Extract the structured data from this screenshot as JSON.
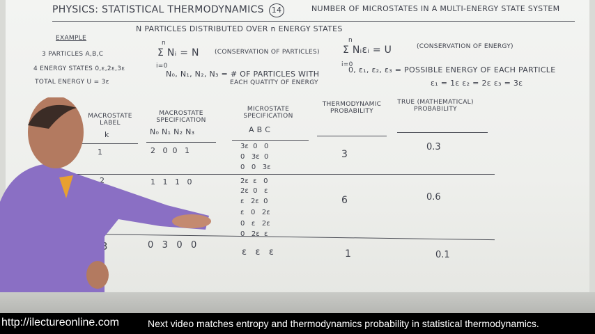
{
  "title": {
    "left": "PHYSICS: STATISTICAL THERMODYNAMICS",
    "number": "14",
    "right": "NUMBER OF MICROSTATES IN A MULTI-ENERGY STATE SYSTEM"
  },
  "intro": {
    "heading": "N PARTICLES DISTRIBUTED OVER n ENERGY STATES",
    "example_label": "EXAMPLE",
    "example": [
      "3 PARTICLES A,B,C",
      "4 ENERGY STATES 0,ε,2ε,3ε",
      "TOTAL ENERGY  U = 3ε"
    ],
    "sum1": "Σ Nᵢ = N",
    "sum1_limits": {
      "top": "n",
      "bottom": "i=0"
    },
    "sum1_note": "(CONSERVATION OF PARTICLES)",
    "ndef": "N₀, N₁, N₂, N₃ = # OF PARTICLES WITH",
    "ndef2": "EACH QUATITY OF ENERGY",
    "sum2": "Σ Nᵢεᵢ = U",
    "sum2_limits": {
      "top": "n",
      "bottom": "i=0"
    },
    "sum2_note": "(CONSERVATION OF ENERGY)",
    "edef": "0, ε₁, ε₂, ε₃ = POSSIBLE ENERGY OF EACH PARTICLE",
    "edef2": "ε₁ = 1ε   ε₂ = 2ε   ε₃ = 3ε"
  },
  "table": {
    "headers": {
      "label": "MACROSTATE LABEL",
      "label_k": "k",
      "spec": "MACROSTATE SPECIFICATION",
      "spec_cols": "N₀   N₁  N₂  N₃",
      "micro": "MICROSTATE SPECIFICATION",
      "micro_cols": "A   B   C",
      "thermo": "THERMODYNAMIC PROBABILITY",
      "true": "TRUE (MATHEMATICAL) PROBABILITY"
    },
    "rows": [
      {
        "k": "1",
        "spec": "2   0  0   1",
        "micro": [
          "3ε  0   0",
          "0   3ε  0",
          "0   0   3ε"
        ],
        "thermo": "3",
        "true": "0.3"
      },
      {
        "k": "2",
        "spec": "1   1   1   0",
        "micro": [
          "2ε  ε   0",
          "2ε  0   ε",
          "ε   2ε  0",
          "ε   0   2ε",
          "0   ε   2ε",
          "0   2ε  ε"
        ],
        "thermo": "6",
        "true": "0.6"
      },
      {
        "k": "3",
        "spec": "0   3   0   0",
        "micro": [
          "ε   ε   ε"
        ],
        "thermo": "1",
        "true": "0.1"
      }
    ]
  },
  "caption": {
    "url": "http://ilectureonline.com",
    "message": "Next video matches entropy and thermodynamics probability in statistical thermodynamics."
  }
}
